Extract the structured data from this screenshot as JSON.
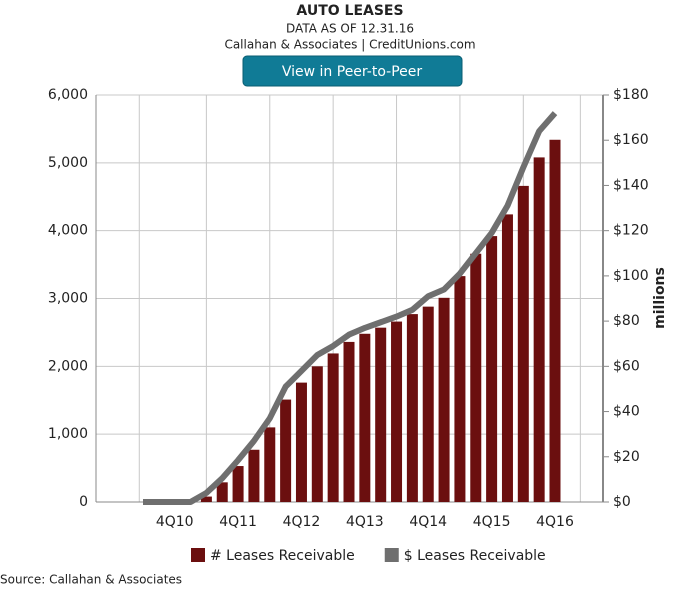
{
  "chart_data": {
    "type": "combo",
    "title": "AUTO LEASES",
    "subtitle": "DATA AS OF 12.31.16",
    "credit": "Callahan & Associates | CreditUnions.com",
    "button": "View in Peer-to-Peer",
    "source": "Source: Callahan & Associates",
    "y2label": "millions",
    "categories": [
      null,
      null,
      "4Q10",
      null,
      null,
      null,
      "4Q11",
      null,
      null,
      null,
      "4Q12",
      null,
      null,
      null,
      "4Q13",
      null,
      null,
      null,
      "4Q14",
      null,
      null,
      null,
      "4Q15",
      null,
      null,
      null,
      "4Q16"
    ],
    "series": [
      {
        "name": "# Leases Receivable",
        "type": "bar",
        "color": "#6b0f0f",
        "values": [
          0,
          0,
          0,
          0,
          80,
          290,
          530,
          770,
          1100,
          1510,
          1760,
          2000,
          2190,
          2360,
          2480,
          2570,
          2660,
          2770,
          2880,
          3010,
          3330,
          3660,
          3920,
          4240,
          4660,
          5080,
          5340
        ]
      },
      {
        "name": "$ Leases Receivable",
        "type": "line",
        "color": "#6f6f6f",
        "axis": "y2",
        "values": [
          0,
          0,
          0,
          0,
          4,
          10.5,
          18.5,
          27,
          37,
          51,
          58,
          65,
          69,
          74,
          77,
          79.5,
          82,
          85,
          91,
          94,
          101,
          110,
          119,
          131,
          148,
          164,
          172
        ]
      }
    ],
    "ylim": [
      0,
      6000
    ],
    "yticks": [
      0,
      {
        "value": 1000,
        "label": "1,000"
      },
      {
        "value": 2000,
        "label": "2,000"
      },
      {
        "value": 3000,
        "label": "3,000"
      },
      {
        "value": 4000,
        "label": "4,000"
      },
      {
        "value": 5000,
        "label": "5,000"
      },
      {
        "value": 6000,
        "label": "6,000"
      }
    ],
    "y2lim": [
      0,
      180
    ],
    "y2ticks": [
      {
        "value": 0,
        "label": "$0"
      },
      {
        "value": 20,
        "label": "$20"
      },
      {
        "value": 40,
        "label": "$40"
      },
      {
        "value": 60,
        "label": "$60"
      },
      {
        "value": 80,
        "label": "$80"
      },
      {
        "value": 100,
        "label": "$100"
      },
      {
        "value": 120,
        "label": "$120"
      },
      {
        "value": 140,
        "label": "$140"
      },
      {
        "value": 160,
        "label": "$160"
      },
      {
        "value": 180,
        "label": "$180"
      }
    ],
    "grid": true
  }
}
